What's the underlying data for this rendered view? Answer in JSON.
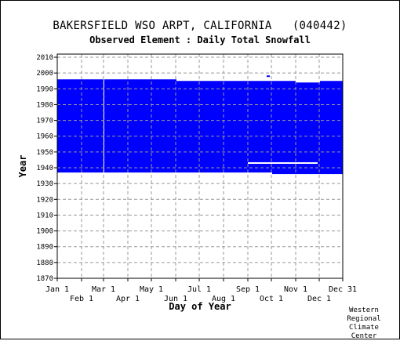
{
  "header": {
    "station": "BAKERSFIELD WSO ARPT, CALIFORNIA   (040442)",
    "element": "Observed Element : Daily Total Snowfall"
  },
  "credit": [
    "Western",
    "Regional",
    "Climate",
    "Center"
  ],
  "colors": {
    "fill": "#0000ff",
    "background": "#ffffff",
    "grid": "#999999",
    "frame": "#000000"
  },
  "chart_data": {
    "type": "area",
    "description_free": true,
    "xlabel": "Day of Year",
    "ylabel": "Year",
    "xlim": [
      1,
      365
    ],
    "ylim": [
      1870,
      2012
    ],
    "grid": true,
    "x_ticks_upper": [
      {
        "label": "Jan 1",
        "day": 1
      },
      {
        "label": "Mar 1",
        "day": 60
      },
      {
        "label": "May 1",
        "day": 121
      },
      {
        "label": "Jul 1",
        "day": 182
      },
      {
        "label": "Sep 1",
        "day": 244
      },
      {
        "label": "Nov 1",
        "day": 305
      },
      {
        "label": "Dec 31",
        "day": 365
      }
    ],
    "x_ticks_lower": [
      {
        "label": "Feb 1",
        "day": 32
      },
      {
        "label": "Apr 1",
        "day": 91
      },
      {
        "label": "Jun 1",
        "day": 152
      },
      {
        "label": "Aug 1",
        "day": 213
      },
      {
        "label": "Oct 1",
        "day": 274
      },
      {
        "label": "Dec 1",
        "day": 335
      }
    ],
    "y_ticks": [
      1870,
      1880,
      1890,
      1900,
      1910,
      1920,
      1930,
      1940,
      1950,
      1960,
      1970,
      1980,
      1990,
      2000,
      2010
    ],
    "coverage": [
      {
        "day_start": 1,
        "day_end": 62,
        "year_start": 1937,
        "year_end": 1996
      },
      {
        "day_start": 62,
        "day_end": 153,
        "year_start": 1937,
        "year_end": 1996
      },
      {
        "day_start": 153,
        "day_end": 275,
        "year_start": 1937,
        "year_end": 1995
      },
      {
        "day_start": 275,
        "day_end": 305,
        "year_start": 1936,
        "year_end": 1995
      },
      {
        "day_start": 305,
        "day_end": 336,
        "year_start": 1936,
        "year_end": 1994
      },
      {
        "day_start": 336,
        "day_end": 365,
        "year_start": 1936,
        "year_end": 1995
      }
    ],
    "gaps": [
      {
        "day_start": 244,
        "day_end": 333,
        "year": 1943
      },
      {
        "day_start": 60,
        "day_end": 61,
        "year_start": 1937,
        "year_end": 1996
      }
    ],
    "isolated_points": [
      {
        "day": 270,
        "year": 1998
      },
      {
        "day": 76,
        "year": 1944
      }
    ]
  }
}
